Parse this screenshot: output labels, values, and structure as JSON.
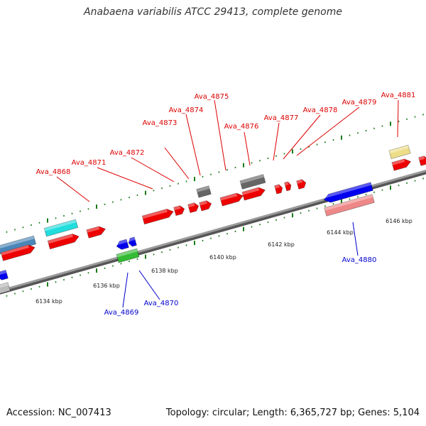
{
  "title": "Anabaena variabilis ATCC 29413, complete genome",
  "footer": {
    "accession": "Accession: NC_007413",
    "summary": "Topology: circular; Length: 6,365,727 bp; Genes: 5,104"
  },
  "colors": {
    "forward_label": "#dd0000",
    "reverse_label": "#0000cc",
    "backbone": "#7a7a7a",
    "tick": "#1a7a1a"
  },
  "scale_labels": [
    "6134 kbp",
    "6136 kbp",
    "6138 kbp",
    "6140 kbp",
    "6142 kbp",
    "6144 kbp",
    "6146 kbp"
  ],
  "gene_labels_top": [
    "Ava_4868",
    "Ava_4871",
    "Ava_4872",
    "Ava_4873",
    "Ava_4874",
    "Ava_4875",
    "Ava_4876",
    "Ava_4877",
    "Ava_4878",
    "Ava_4879",
    "Ava_4881"
  ],
  "gene_labels_bottom": [
    "Ava_4869",
    "Ava_4870",
    "Ava_4880"
  ]
}
